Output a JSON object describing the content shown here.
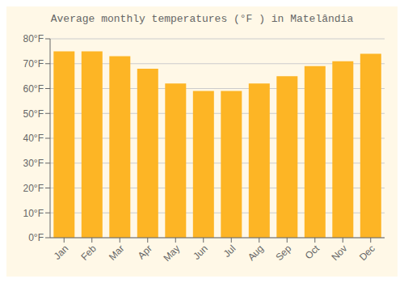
{
  "chart_data": {
    "type": "bar",
    "title": "Average monthly temperatures (°F ) in Matelândia",
    "categories": [
      "Jan",
      "Feb",
      "Mar",
      "Apr",
      "May",
      "Jun",
      "Jul",
      "Aug",
      "Sep",
      "Oct",
      "Nov",
      "Dec"
    ],
    "values": [
      75,
      75,
      73,
      68,
      62,
      59,
      59,
      62,
      65,
      69,
      71,
      74
    ],
    "color": "#FDB525",
    "ylim": [
      0,
      80
    ],
    "yticks": [
      {
        "value": 0,
        "label": "0°F"
      },
      {
        "value": 10,
        "label": "10°F"
      },
      {
        "value": 20,
        "label": "20°F"
      },
      {
        "value": 30,
        "label": "30°F"
      },
      {
        "value": 40,
        "label": "40°F"
      },
      {
        "value": 50,
        "label": "50°F"
      },
      {
        "value": 60,
        "label": "60°F"
      },
      {
        "value": 70,
        "label": "70°F"
      },
      {
        "value": 80,
        "label": "80°F"
      }
    ],
    "grid": true
  }
}
